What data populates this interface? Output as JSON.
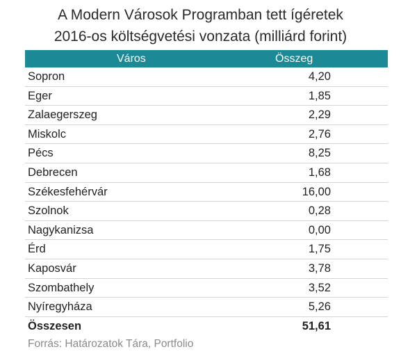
{
  "title_line1": "A Modern Városok Programban tett ígéretek",
  "title_line2": "2016-os költségvetési vonzata (milliárd forint)",
  "header_color": "#1b8a96",
  "chart_data": {
    "type": "table",
    "columns": [
      "Város",
      "Összeg"
    ],
    "rows": [
      {
        "city": "Sopron",
        "amount": "4,20"
      },
      {
        "city": "Eger",
        "amount": "1,85"
      },
      {
        "city": "Zalaegerszeg",
        "amount": "2,29"
      },
      {
        "city": "Miskolc",
        "amount": "2,76"
      },
      {
        "city": "Pécs",
        "amount": "8,25"
      },
      {
        "city": "Debrecen",
        "amount": "1,68"
      },
      {
        "city": "Székesfehérvár",
        "amount": "16,00"
      },
      {
        "city": "Szolnok",
        "amount": "0,28"
      },
      {
        "city": "Nagykanizsa",
        "amount": "0,00"
      },
      {
        "city": "Érd",
        "amount": "1,75"
      },
      {
        "city": "Kaposvár",
        "amount": "3,78"
      },
      {
        "city": "Szombathely",
        "amount": "3,52"
      },
      {
        "city": "Nyíregyháza",
        "amount": "5,26"
      }
    ],
    "total": {
      "label": "Összesen",
      "amount": "51,61"
    }
  },
  "source": "Forrás: Határozatok Tára, Portfolio"
}
